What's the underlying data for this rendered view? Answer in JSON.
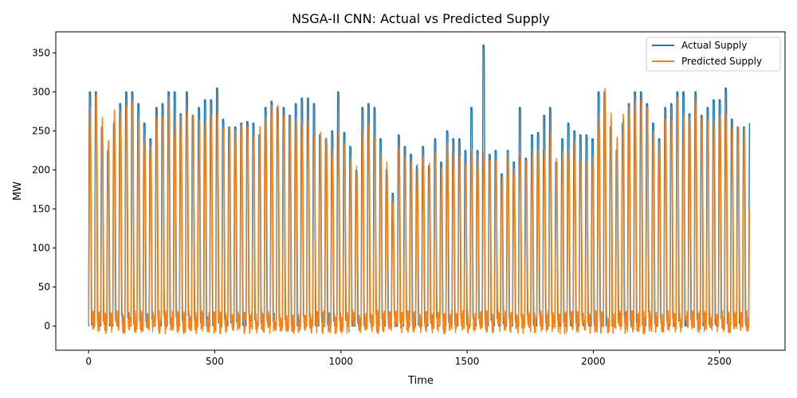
{
  "chart_data": {
    "type": "line",
    "title": "NSGA-II CNN: Actual vs Predicted Supply",
    "xlabel": "Time",
    "ylabel": "MW",
    "xlim": [
      -130,
      2760
    ],
    "ylim": [
      -31,
      377
    ],
    "xticks": [
      0,
      500,
      1000,
      1500,
      2000,
      2500
    ],
    "yticks": [
      0,
      50,
      100,
      150,
      200,
      250,
      300,
      350
    ],
    "legend": "top-right",
    "grid": false,
    "n_points": 2620,
    "cycle_length": 24,
    "actual_cycle_peaks": [
      300,
      300,
      255,
      225,
      260,
      285,
      300,
      300,
      285,
      260,
      240,
      280,
      285,
      300,
      300,
      272,
      300,
      270,
      280,
      290,
      290,
      305,
      265,
      255,
      255,
      260,
      262,
      260,
      245,
      280,
      288,
      280,
      280,
      270,
      285,
      292,
      292,
      285,
      245,
      240,
      250,
      300,
      248,
      230,
      200,
      280,
      285,
      280,
      240,
      200,
      170,
      245,
      230,
      220,
      205,
      230,
      205,
      240,
      210,
      250,
      240,
      240,
      225,
      280,
      225,
      360,
      220,
      225,
      195,
      225,
      210,
      280,
      215,
      245,
      248,
      270,
      280,
      210,
      240,
      260,
      250,
      245,
      245,
      240
    ],
    "predicted_cycle_peaks": [
      270,
      300,
      260,
      240,
      270,
      275,
      285,
      285,
      270,
      245,
      230,
      265,
      270,
      285,
      260,
      260,
      280,
      265,
      260,
      265,
      270,
      270,
      250,
      245,
      250,
      255,
      248,
      245,
      245,
      270,
      275,
      270,
      265,
      255,
      265,
      250,
      255,
      245,
      240,
      235,
      225,
      235,
      230,
      220,
      195,
      240,
      245,
      230,
      225,
      200,
      160,
      220,
      215,
      215,
      200,
      215,
      200,
      220,
      205,
      225,
      215,
      215,
      200,
      230,
      210,
      225,
      210,
      205,
      190,
      215,
      200,
      225,
      205,
      220,
      222,
      230,
      235,
      205,
      220,
      225,
      225,
      215,
      215,
      220
    ],
    "series": [
      {
        "name": "Actual Supply",
        "color": "#1f77b4"
      },
      {
        "name": "Predicted Supply",
        "color": "#ff7f0e"
      }
    ]
  }
}
